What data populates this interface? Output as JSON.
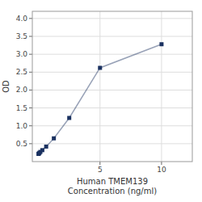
{
  "chart_data": {
    "type": "line",
    "xlabel": "Human TMEM139\nConcentration (ng/ml)",
    "ylabel": "OD",
    "x": [
      0.0,
      0.039,
      0.078,
      0.156,
      0.313,
      0.625,
      1.25,
      2.5,
      5.0,
      10.0
    ],
    "values": [
      0.215,
      0.228,
      0.245,
      0.27,
      0.32,
      0.42,
      0.65,
      1.22,
      2.62,
      3.28
    ],
    "color": "#1a3160",
    "marker": "square",
    "xlim": [
      -0.5,
      12.5
    ],
    "ylim": [
      0.0,
      4.2
    ],
    "xticks": [
      5,
      10
    ],
    "yticks": [
      0.5,
      {
        "value": 1.0,
        "label": "1.0"
      },
      1.5,
      {
        "value": 2.0,
        "label": "2.0"
      },
      2.5,
      {
        "value": 3.0,
        "label": "3.0"
      },
      3.5,
      {
        "value": 4.0,
        "label": "4.0"
      }
    ],
    "grid": true
  }
}
